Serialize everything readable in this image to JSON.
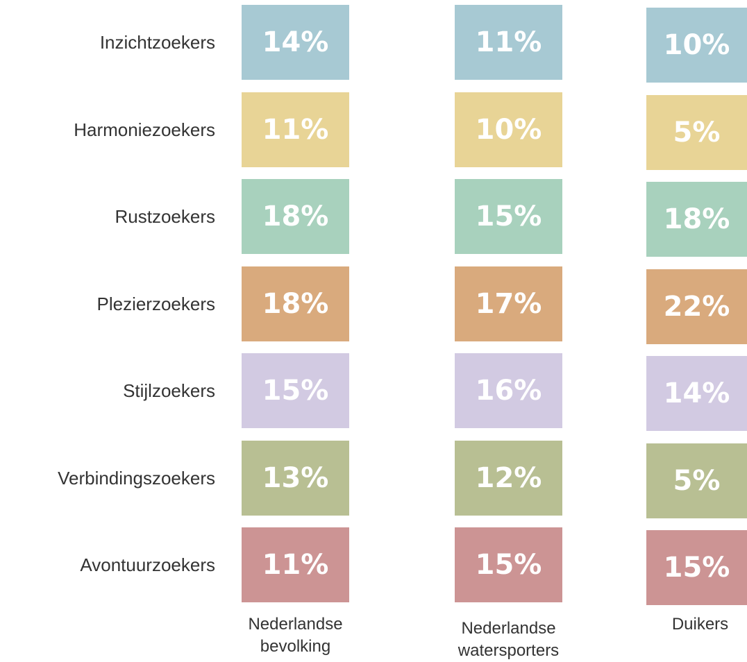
{
  "table": {
    "columns": [
      "Nederlandse\nbevolking",
      "Nederlandse\nwatersporters",
      "Duikers"
    ],
    "rows": [
      {
        "label": "Inzichtzoekers",
        "color": "#a7c9d3",
        "cells": [
          "14%",
          "11%",
          "10%"
        ]
      },
      {
        "label": "Harmoniezoekers",
        "color": "#e8d496",
        "cells": [
          "11%",
          "10%",
          "5%"
        ]
      },
      {
        "label": "Rustzoekers",
        "color": "#a8d1bd",
        "cells": [
          "18%",
          "15%",
          "18%"
        ]
      },
      {
        "label": "Plezierzoekers",
        "color": "#d9aa7d",
        "cells": [
          "18%",
          "17%",
          "22%"
        ]
      },
      {
        "label": "Stijlzoekers",
        "color": "#d2cae2",
        "cells": [
          "15%",
          "16%",
          "14%"
        ]
      },
      {
        "label": "Verbindingszoekers",
        "color": "#b8bf93",
        "cells": [
          "13%",
          "12%",
          "5%"
        ]
      },
      {
        "label": "Avontuurzoekers",
        "color": "#cc9494",
        "cells": [
          "11%",
          "15%",
          "15%"
        ]
      }
    ]
  }
}
